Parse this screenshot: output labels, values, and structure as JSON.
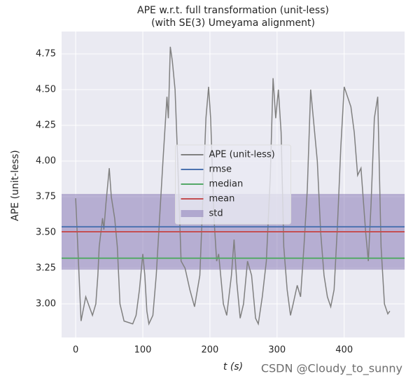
{
  "chart_data": {
    "type": "line",
    "title": "APE w.r.t. full transformation (unit-less)",
    "subtitle": "(with SE(3) Umeyama alignment)",
    "x_label": "t (s)",
    "y_label": "APE (unit-less)",
    "watermark": "CSDN @Cloudy_to_sunny",
    "legend": "center",
    "grid": true,
    "xlim": [
      -21,
      490
    ],
    "ylim": [
      2.765,
      4.907
    ],
    "xticks": [
      0,
      100,
      200,
      300,
      400
    ],
    "yticks": [
      {
        "value": 3,
        "label": "3.00"
      },
      {
        "value": 3.25,
        "label": "3.25"
      },
      {
        "value": 3.5,
        "label": "3.50"
      },
      {
        "value": 3.75,
        "label": "3.75"
      },
      {
        "value": 4,
        "label": "4.00"
      },
      {
        "value": 4.25,
        "label": "4.25"
      },
      {
        "value": 4.5,
        "label": "4.50"
      },
      {
        "value": 4.75,
        "label": "4.75"
      }
    ],
    "x": [
      0,
      8,
      15,
      25,
      30,
      33,
      35,
      40,
      42,
      45,
      50,
      53,
      58,
      62,
      66,
      72,
      85,
      90,
      95,
      100,
      103,
      106,
      109,
      115,
      120,
      125,
      130,
      136,
      138,
      141,
      144,
      148,
      152,
      157,
      163,
      170,
      177,
      185,
      190,
      194,
      198,
      201,
      206,
      210,
      213,
      220,
      225,
      232,
      236,
      240,
      245,
      250,
      256,
      262,
      268,
      272,
      278,
      284,
      290,
      294,
      298,
      302,
      306,
      310,
      315,
      320,
      324,
      330,
      335,
      340,
      345,
      350,
      354,
      360,
      365,
      370,
      375,
      380,
      385,
      390,
      395,
      400,
      405,
      410,
      415,
      420,
      425,
      432,
      436,
      440,
      445,
      450,
      455,
      460,
      465,
      468
    ],
    "series": [
      {
        "name": "APE (unit-less)",
        "color": "#808080",
        "values": [
          3.74,
          2.88,
          3.05,
          2.92,
          3.0,
          3.2,
          3.4,
          3.6,
          3.52,
          3.7,
          3.95,
          3.75,
          3.6,
          3.4,
          3.0,
          2.88,
          2.86,
          2.92,
          3.1,
          3.35,
          3.2,
          2.95,
          2.86,
          2.92,
          3.2,
          3.6,
          4.0,
          4.45,
          4.3,
          4.8,
          4.7,
          4.5,
          4.0,
          3.3,
          3.25,
          3.1,
          2.98,
          3.2,
          3.8,
          4.3,
          4.52,
          4.3,
          3.6,
          3.3,
          3.35,
          3.0,
          2.92,
          3.2,
          3.45,
          3.15,
          2.9,
          3.0,
          3.3,
          3.2,
          2.9,
          2.86,
          3.05,
          3.3,
          3.9,
          4.58,
          4.3,
          4.5,
          4.2,
          3.4,
          3.1,
          2.92,
          3.0,
          3.13,
          3.05,
          3.4,
          3.8,
          4.5,
          4.3,
          4.0,
          3.5,
          3.2,
          3.05,
          2.98,
          3.1,
          3.55,
          4.1,
          4.52,
          4.45,
          4.38,
          4.2,
          3.9,
          3.95,
          3.5,
          3.3,
          3.7,
          4.3,
          4.45,
          3.4,
          3.0,
          2.93,
          2.95
        ]
      }
    ],
    "stats": [
      {
        "name": "rmse",
        "color": "#4c72b0",
        "value": 3.54
      },
      {
        "name": "median",
        "color": "#55a868",
        "value": 3.32
      },
      {
        "name": "mean",
        "color": "#c44e52",
        "value": 3.505
      }
    ],
    "std": {
      "name": "std",
      "color": "#8172b2",
      "value": 0.265
    }
  }
}
